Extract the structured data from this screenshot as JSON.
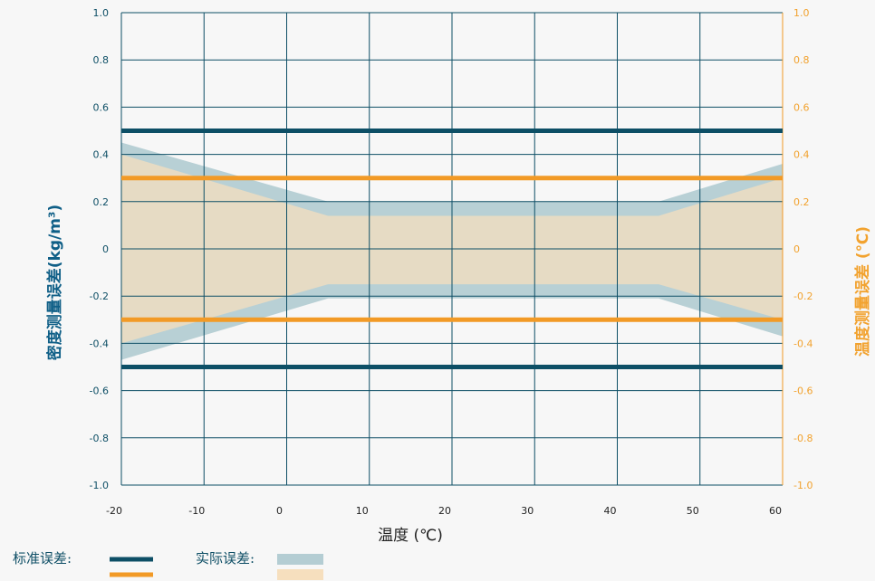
{
  "chart_data": {
    "type": "area",
    "xlabel": "温度 (℃)",
    "ylabel_left": "密度测量误差(kg/m³)",
    "ylabel_right": "温度测量误差 (℃)",
    "x_ticks": [
      -20,
      -10,
      0,
      10,
      20,
      30,
      40,
      50,
      60
    ],
    "y_ticks": [
      1.0,
      0.8,
      0.6,
      0.4,
      0.2,
      0,
      -0.2,
      -0.4,
      -0.6,
      -0.8,
      -1.0
    ],
    "y_tick_labels": [
      "1.0",
      "0.8",
      "0.6",
      "0.4",
      "0.2",
      "0",
      "-0.2",
      "-0.4",
      "-0.6",
      "-0.8",
      "-1.0"
    ],
    "xlim": [
      -20,
      60
    ],
    "ylim": [
      -1.0,
      1.0
    ],
    "grid": true,
    "standard_error": {
      "density": 0.5,
      "temperature": 0.3
    },
    "series": [
      {
        "axis": "left",
        "x": [
          -20,
          5,
          45,
          60
        ],
        "upper": [
          0.45,
          0.2,
          0.2,
          0.36
        ],
        "lower": [
          -0.47,
          -0.21,
          -0.21,
          -0.37
        ]
      },
      {
        "axis": "right",
        "x": [
          -20,
          5,
          45,
          60
        ],
        "upper": [
          0.4,
          0.14,
          0.14,
          0.3
        ],
        "lower": [
          -0.4,
          -0.15,
          -0.15,
          -0.3
        ]
      }
    ]
  },
  "legend": {
    "standard_label": "标准误差:",
    "actual_label": "实际误差:"
  },
  "colors": {
    "density_line": "#0d4f66",
    "temperature_line": "#f29a26",
    "density_band": "#b4cdd3",
    "temperature_band": "#f6dfbe",
    "grid": "#0e4f66"
  }
}
